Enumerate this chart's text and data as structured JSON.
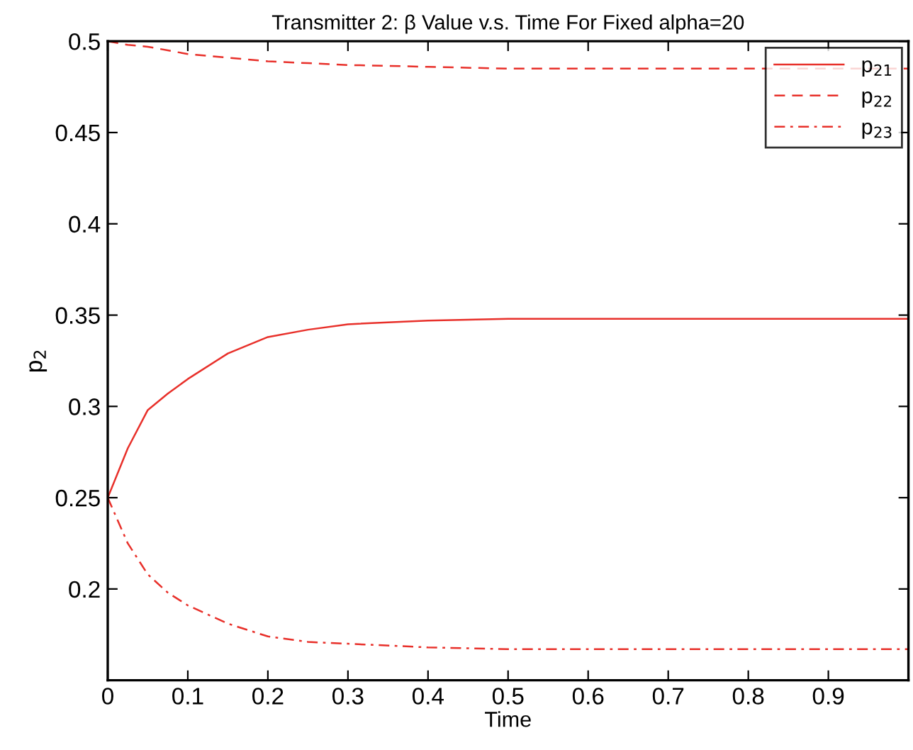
{
  "chart_data": {
    "type": "line",
    "title": "Transmitter 2: β Value v.s. Time For Fixed alpha=20",
    "xlabel": "Time",
    "ylabel": "p$_{2}$",
    "x": [
      0,
      0.025,
      0.05,
      0.075,
      0.1,
      0.15,
      0.2,
      0.25,
      0.3,
      0.4,
      0.5,
      0.7,
      1.0
    ],
    "series": [
      {
        "name": "p$_{21}$",
        "color": "#e8302a",
        "line_style": "solid",
        "values": [
          0.25,
          0.277,
          0.298,
          0.307,
          0.315,
          0.329,
          0.338,
          0.342,
          0.345,
          0.347,
          0.348,
          0.348,
          0.348
        ]
      },
      {
        "name": "p$_{22}$",
        "color": "#e8302a",
        "line_style": "dashed",
        "values": [
          0.5,
          0.498,
          0.497,
          0.495,
          0.493,
          0.491,
          0.489,
          0.488,
          0.487,
          0.486,
          0.485,
          0.485,
          0.485
        ]
      },
      {
        "name": "p$_{23}$",
        "color": "#e8302a",
        "line_style": "dashdot",
        "values": [
          0.25,
          0.225,
          0.208,
          0.198,
          0.191,
          0.181,
          0.174,
          0.171,
          0.17,
          0.168,
          0.167,
          0.167,
          0.167
        ]
      }
    ],
    "xlim": [
      0,
      1
    ],
    "xticks": [
      0,
      0.1,
      0.2,
      0.3,
      0.4,
      0.5,
      0.6,
      0.7,
      0.8,
      0.9
    ],
    "ylim": [
      0.15,
      0.5
    ],
    "yticks": [
      0.2,
      0.25,
      0.3,
      0.35,
      0.4,
      0.45,
      0.5
    ],
    "grid": false,
    "legend": "top right",
    "marker": "none"
  }
}
